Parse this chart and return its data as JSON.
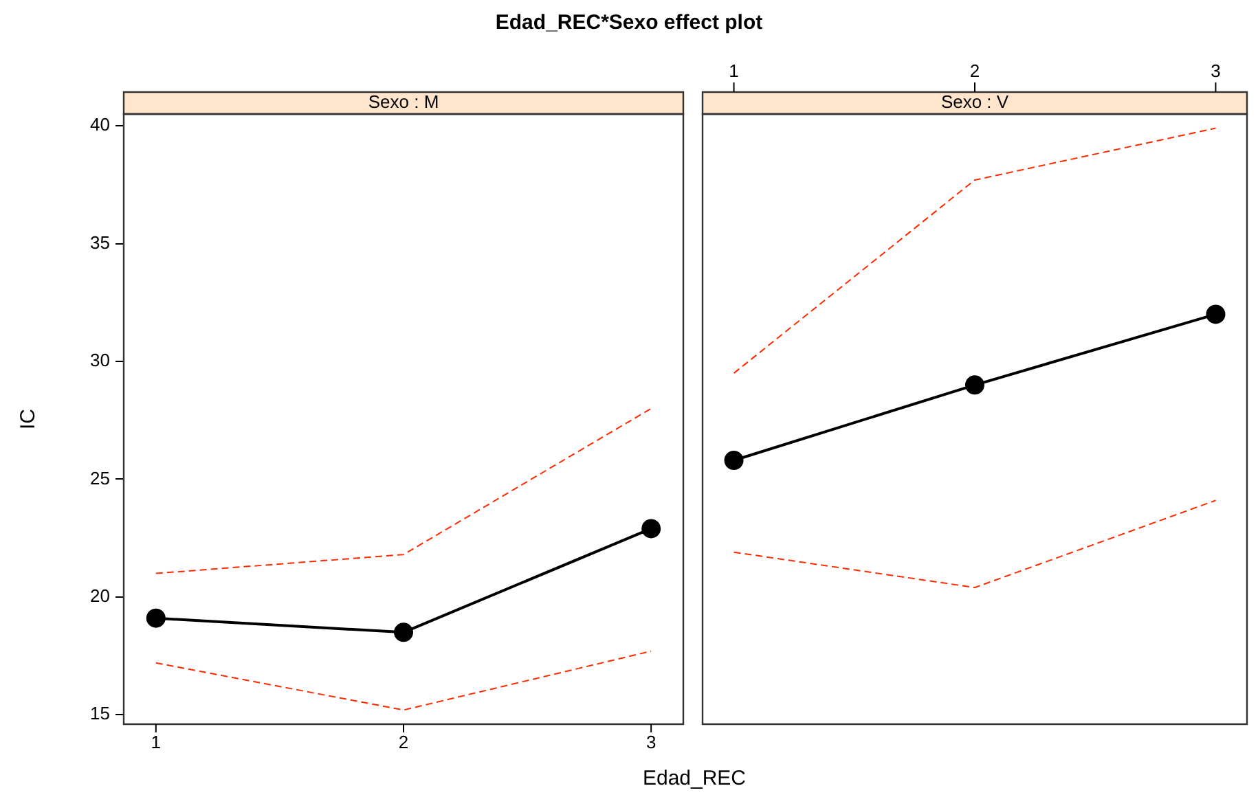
{
  "chart_data": [
    {
      "type": "line",
      "title": "Edad_REC*Sexo effect plot",
      "subtitle": "Sexo : M",
      "xlabel": "Edad_REC",
      "ylabel": "IC",
      "x": [
        1,
        2,
        3
      ],
      "xlim": [
        0.87,
        3.13
      ],
      "xticks": [
        1,
        2,
        3
      ],
      "ylim": [
        14.6,
        40.5
      ],
      "yticks": [
        15,
        20,
        25,
        30,
        35,
        40
      ],
      "grid": false,
      "legend": false,
      "series": [
        {
          "color": "#000000",
          "values": [
            19.1,
            18.5,
            22.9
          ],
          "marker": "circle",
          "line_style": "solid"
        },
        {
          "color": "#ff2a00",
          "values": [
            17.2,
            15.2,
            17.7
          ],
          "marker": "none",
          "line_style": "dashed"
        },
        {
          "color": "#ff2a00",
          "values": [
            21.0,
            21.8,
            28.0
          ],
          "marker": "none",
          "line_style": "dashed"
        }
      ]
    },
    {
      "type": "line",
      "subtitle": "Sexo : V",
      "x": [
        1,
        2,
        3
      ],
      "xlim": [
        0.87,
        3.13
      ],
      "xticks": [
        1,
        2,
        3
      ],
      "ylim": [
        14.6,
        40.5
      ],
      "yticks": [
        15,
        20,
        25,
        30,
        35,
        40
      ],
      "grid": false,
      "legend": false,
      "tick_labels": "x",
      "series": [
        {
          "color": "#000000",
          "values": [
            25.8,
            29.0,
            32.0
          ],
          "marker": "circle",
          "line_style": "solid"
        },
        {
          "color": "#ff2a00",
          "values": [
            21.9,
            20.4,
            24.1
          ],
          "marker": "none",
          "line_style": "dashed"
        },
        {
          "color": "#ff2a00",
          "values": [
            29.5,
            37.7,
            39.9
          ],
          "marker": "none",
          "line_style": "dashed"
        }
      ]
    }
  ]
}
